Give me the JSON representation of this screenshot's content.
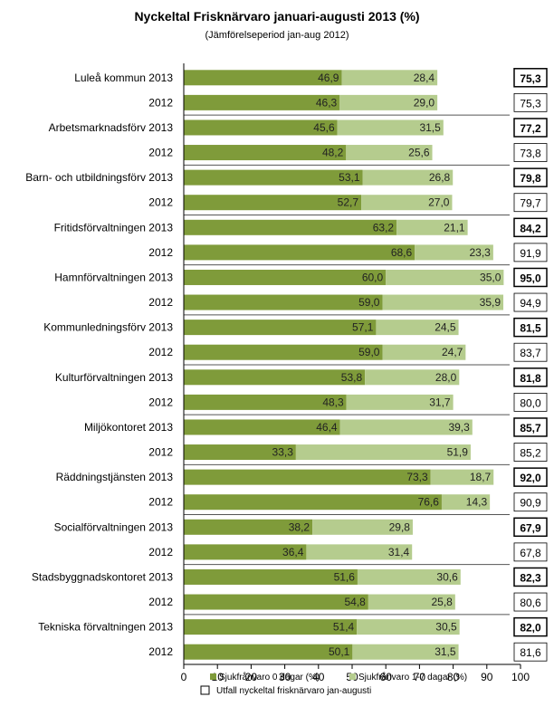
{
  "chart_data": {
    "type": "bar",
    "orientation": "horizontal",
    "stacked": true,
    "title": "Nyckeltal Frisknärvaro januari-augusti 2013 (%)",
    "subtitle": "(Jämförelseperiod jan-aug 2012)",
    "xlim": [
      0,
      100
    ],
    "xticks": [
      "0",
      "10",
      "20",
      "30",
      "40",
      "50",
      "60",
      "70",
      "80",
      "90",
      "100"
    ],
    "grid": false,
    "legend_position": "bottom",
    "categories": [
      "Luleå kommun 2013",
      "2012",
      "Arbetsmarknadsförv 2013",
      "2012",
      "Barn- och utbildningsförv 2013",
      "2012",
      "Fritidsförvaltningen 2013",
      "2012",
      "Hamnförvaltningen 2013",
      "2012",
      "Kommunledningsförv 2013",
      "2012",
      "Kulturförvaltningen 2013",
      "2012",
      "Miljökontoret 2013",
      "2012",
      "Räddningstjänsten 2013",
      "2012",
      "Socialförvaltningen 2013",
      "2012",
      "Stadsbyggnadskontoret 2013",
      "2012",
      "Tekniska förvaltningen 2013",
      "2012"
    ],
    "series": [
      {
        "name": "Sjukfrånvaro 0 dagar (%)",
        "color": "#7f9b3a",
        "values": [
          46.9,
          46.3,
          45.6,
          48.2,
          53.1,
          52.7,
          63.2,
          68.6,
          60.0,
          59.0,
          57.1,
          59.0,
          53.8,
          48.3,
          46.4,
          33.3,
          73.3,
          76.6,
          38.2,
          36.4,
          51.6,
          54.8,
          51.4,
          50.1
        ],
        "labels": [
          "46,9",
          "46,3",
          "45,6",
          "48,2",
          "53,1",
          "52,7",
          "63,2",
          "68,6",
          "60,0",
          "59,0",
          "57,1",
          "59,0",
          "53,8",
          "48,3",
          "46,4",
          "33,3",
          "73,3",
          "76,6",
          "38,2",
          "36,4",
          "51,6",
          "54,8",
          "51,4",
          "50,1"
        ]
      },
      {
        "name": "Sjukfrånvaro 1-7 dagar (%)",
        "color": "#b5cc8e",
        "values": [
          28.4,
          29.0,
          31.5,
          25.6,
          26.8,
          27.0,
          21.1,
          23.3,
          35.0,
          35.9,
          24.5,
          24.7,
          28.0,
          31.7,
          39.3,
          51.9,
          18.7,
          14.3,
          29.8,
          31.4,
          30.6,
          25.8,
          30.5,
          31.5
        ],
        "labels": [
          "28,4",
          "29,0",
          "31,5",
          "25,6",
          "26,8",
          "27,0",
          "21,1",
          "23,3",
          "35,0",
          "35,9",
          "24,5",
          "24,7",
          "28,0",
          "31,7",
          "39,3",
          "51,9",
          "18,7",
          "14,3",
          "29,8",
          "31,4",
          "30,6",
          "25,8",
          "30,5",
          "31,5"
        ]
      }
    ],
    "totals": {
      "name": "Utfall nyckeltal frisknärvaro jan-augusti",
      "labels": [
        "75,3",
        "75,3",
        "77,2",
        "73,8",
        "79,8",
        "79,7",
        "84,2",
        "91,9",
        "95,0",
        "94,9",
        "81,5",
        "83,7",
        "81,8",
        "80,0",
        "85,7",
        "85,2",
        "92,0",
        "90,9",
        "67,9",
        "67,8",
        "82,3",
        "80,6",
        "82,0",
        "81,6"
      ]
    }
  }
}
